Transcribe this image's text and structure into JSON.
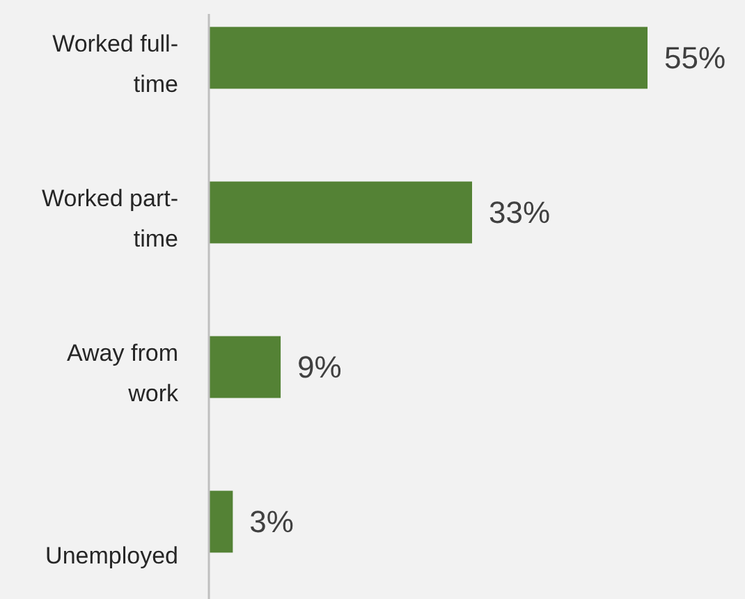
{
  "chart_data": {
    "type": "bar",
    "orientation": "horizontal",
    "categories": [
      "Worked full-time",
      "Worked part-time",
      "Away from work",
      "Unemployed"
    ],
    "values": [
      55,
      33,
      9,
      3
    ],
    "color": "#548235",
    "tick_labels": "y",
    "value_labels": [
      "55%",
      "33%",
      "9%",
      "3%"
    ]
  }
}
